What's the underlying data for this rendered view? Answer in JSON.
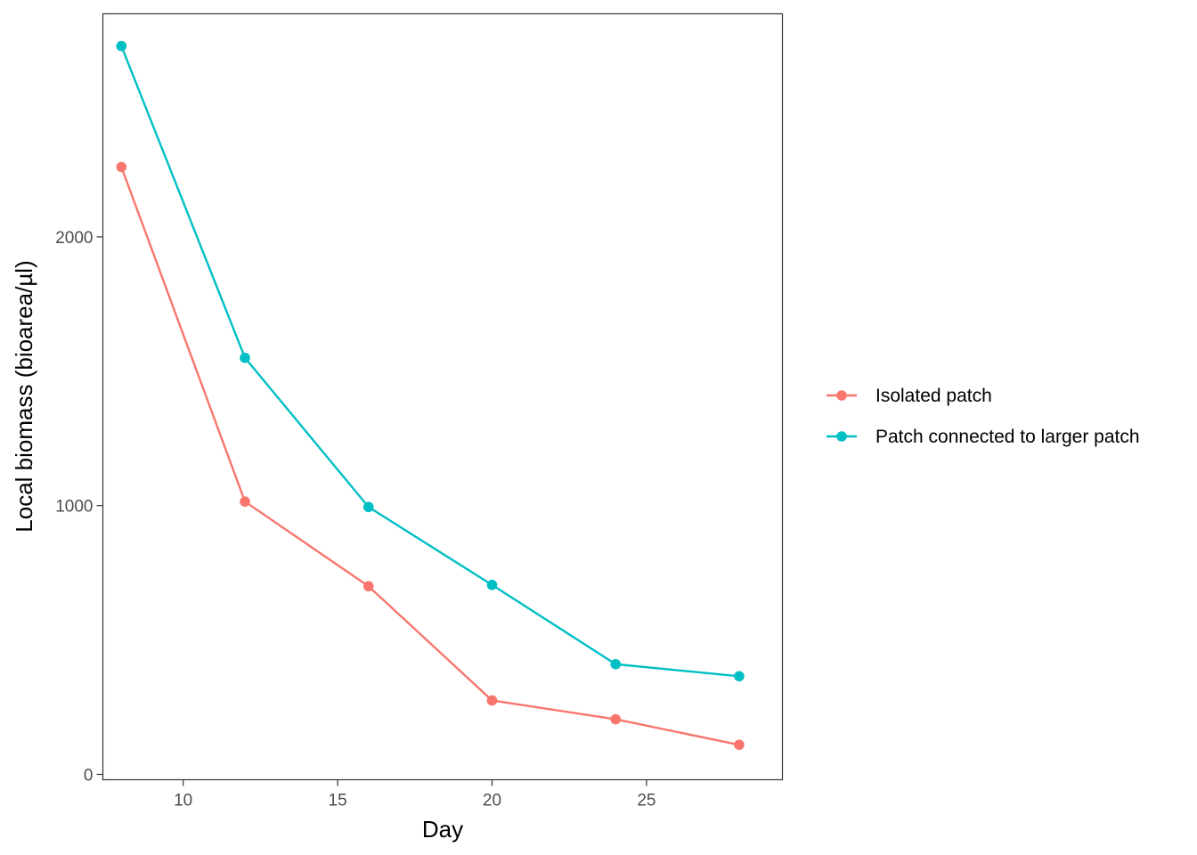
{
  "chart_data": {
    "type": "line",
    "title": "",
    "xlabel": "Day",
    "ylabel": "Local biomass (bioarea/µl)",
    "xlim": [
      7.4,
      29.4
    ],
    "ylim": [
      -20,
      2830
    ],
    "x_ticks": [
      10,
      15,
      20,
      25
    ],
    "y_ticks": [
      0,
      1000,
      2000
    ],
    "grid": false,
    "legend_position": "right",
    "series": [
      {
        "name": "Isolated patch",
        "color": "#F8766D",
        "x": [
          8,
          12,
          16,
          20,
          24,
          28
        ],
        "values": [
          2260,
          1015,
          700,
          275,
          205,
          110
        ]
      },
      {
        "name": "Patch connected to larger patch",
        "color": "#00BFC4",
        "x": [
          8,
          12,
          16,
          20,
          24,
          28
        ],
        "values": [
          2710,
          1550,
          995,
          705,
          410,
          365
        ]
      }
    ]
  }
}
